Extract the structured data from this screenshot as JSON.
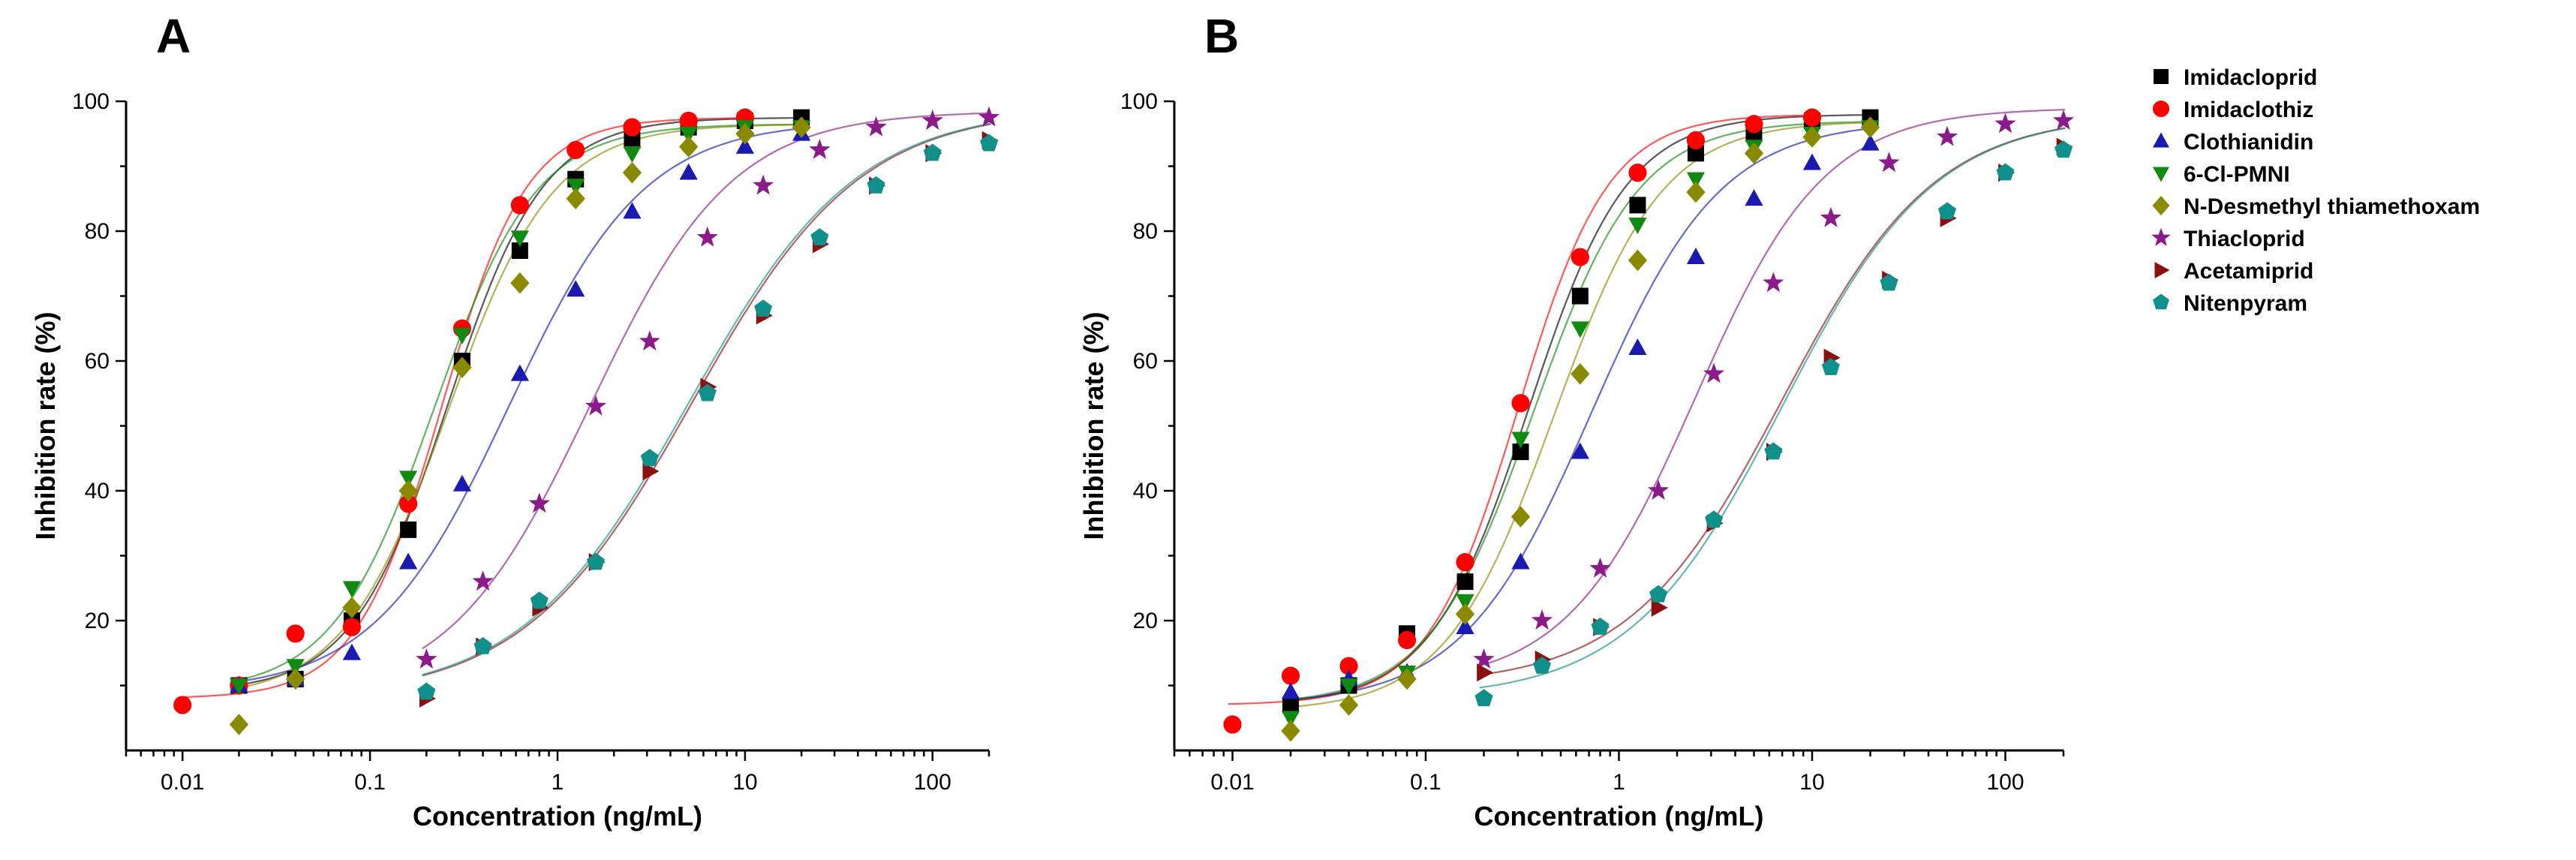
{
  "figure": {
    "legend": [
      {
        "name": "Imidacloprid",
        "color": "#000000",
        "marker": "square"
      },
      {
        "name": "Imidaclothiz",
        "color": "#ff0000",
        "marker": "circle"
      },
      {
        "name": "Clothianidin",
        "color": "#1a1ab0",
        "marker": "triangle-up"
      },
      {
        "name": "6-Cl-PMNI",
        "color": "#108a10",
        "marker": "triangle-down"
      },
      {
        "name": "N-Desmethyl thiamethoxam",
        "color": "#8a8a00",
        "marker": "diamond"
      },
      {
        "name": "Thiacloprid",
        "color": "#8b1a8b",
        "marker": "star"
      },
      {
        "name": "Acetamiprid",
        "color": "#8b1010",
        "marker": "triangle-right"
      },
      {
        "name": "Nitenpyram",
        "color": "#10908a",
        "marker": "pentagon"
      }
    ]
  },
  "chart_data": [
    {
      "panel": "A",
      "type": "scatter",
      "xlabel": "Concentration (ng/mL)",
      "ylabel": "Inhibition rate (%)",
      "xscale": "log",
      "xlim": [
        0.005,
        200
      ],
      "ylim": [
        0,
        100
      ],
      "xticks": [
        "0.01",
        "0.1",
        "1",
        "10",
        "100"
      ],
      "yticks": [
        "20",
        "40",
        "60",
        "80",
        "100"
      ],
      "series": [
        {
          "name": "Imidacloprid",
          "x": [
            0.02,
            0.04,
            0.08,
            0.16,
            0.31,
            0.63,
            1.25,
            2.5,
            5,
            10,
            20
          ],
          "y": [
            10,
            11,
            20,
            34,
            60,
            77,
            88,
            94,
            96,
            97,
            97.5
          ],
          "fit": {
            "bottom": 9,
            "top": 97.5,
            "ec50": 0.26,
            "hill": 1.7
          }
        },
        {
          "name": "Imidaclothiz",
          "x": [
            0.01,
            0.02,
            0.04,
            0.08,
            0.16,
            0.31,
            0.63,
            1.25,
            2.5,
            5,
            10
          ],
          "y": [
            7,
            10,
            18,
            19,
            38,
            65,
            84,
            92.5,
            96,
            97,
            97.5
          ],
          "fit": {
            "bottom": 8,
            "top": 97.5,
            "ec50": 0.24,
            "hill": 1.9
          }
        },
        {
          "name": "Clothianidin",
          "x": [
            0.02,
            0.04,
            0.08,
            0.16,
            0.31,
            0.63,
            1.25,
            2.5,
            5,
            10,
            20
          ],
          "y": [
            10,
            11,
            15,
            29,
            41,
            58,
            71,
            83,
            89,
            93,
            95
          ],
          "fit": {
            "bottom": 9,
            "top": 97,
            "ec50": 0.55,
            "hill": 1.2
          }
        },
        {
          "name": "6-Cl-PMNI",
          "x": [
            0.02,
            0.04,
            0.08,
            0.16,
            0.31,
            0.63,
            1.25,
            2.5,
            5,
            10,
            20
          ],
          "y": [
            10,
            13,
            25,
            42,
            64,
            79,
            87,
            92,
            95,
            96,
            96
          ],
          "fit": {
            "bottom": 9,
            "top": 96.5,
            "ec50": 0.22,
            "hill": 1.6
          }
        },
        {
          "name": "N-Desmethyl thiamethoxam",
          "x": [
            0.02,
            0.04,
            0.08,
            0.16,
            0.31,
            0.63,
            1.25,
            2.5,
            5,
            10,
            20
          ],
          "y": [
            4,
            11,
            22,
            40,
            59,
            72,
            85,
            89,
            93,
            95,
            96
          ],
          "fit": {
            "bottom": 8,
            "top": 96.5,
            "ec50": 0.26,
            "hill": 1.55
          }
        },
        {
          "name": "Thiacloprid",
          "x": [
            0.2,
            0.4,
            0.8,
            1.6,
            3.1,
            6.3,
            12.5,
            25,
            50,
            100,
            200
          ],
          "y": [
            14,
            26,
            38,
            53,
            63,
            79,
            87,
            92.5,
            96,
            97,
            97.5
          ],
          "fit": {
            "bottom": 8,
            "top": 98.5,
            "ec50": 1.5,
            "hill": 1.15
          }
        },
        {
          "name": "Acetamiprid",
          "x": [
            0.2,
            0.4,
            0.8,
            1.6,
            3.1,
            6.3,
            12.5,
            25,
            50,
            100,
            200
          ],
          "y": [
            8,
            16,
            22,
            29,
            43,
            56,
            67,
            78,
            87,
            92,
            94
          ],
          "fit": {
            "bottom": 8,
            "top": 99,
            "ec50": 5.2,
            "hill": 0.97
          }
        },
        {
          "name": "Nitenpyram",
          "x": [
            0.2,
            0.4,
            0.8,
            1.6,
            3.1,
            6.3,
            12.5,
            25,
            50,
            100,
            200
          ],
          "y": [
            9,
            16,
            23,
            29,
            45,
            55,
            68,
            79,
            87,
            92,
            93.5
          ],
          "fit": {
            "bottom": 8,
            "top": 99,
            "ec50": 5.0,
            "hill": 0.97
          }
        }
      ]
    },
    {
      "panel": "B",
      "type": "scatter",
      "xlabel": "Concentration (ng/mL)",
      "ylabel": "Inhibition rate (%)",
      "xscale": "log",
      "xlim": [
        0.005,
        200
      ],
      "ylim": [
        0,
        100
      ],
      "xticks": [
        "0.01",
        "0.1",
        "1",
        "10",
        "100"
      ],
      "yticks": [
        "20",
        "40",
        "60",
        "80",
        "100"
      ],
      "series": [
        {
          "name": "Imidacloprid",
          "x": [
            0.02,
            0.04,
            0.08,
            0.16,
            0.31,
            0.63,
            1.25,
            2.5,
            5,
            10,
            20
          ],
          "y": [
            7,
            10,
            18,
            26,
            46,
            70,
            84,
            92,
            95,
            97,
            97.5
          ],
          "fit": {
            "bottom": 7,
            "top": 98,
            "ec50": 0.34,
            "hill": 1.7
          }
        },
        {
          "name": "Imidaclothiz",
          "x": [
            0.01,
            0.02,
            0.04,
            0.08,
            0.16,
            0.31,
            0.63,
            1.25,
            2.5,
            5,
            10
          ],
          "y": [
            4,
            11.5,
            13,
            17,
            29,
            53.5,
            76,
            89,
            94,
            96.5,
            97.5
          ],
          "fit": {
            "bottom": 7,
            "top": 98,
            "ec50": 0.3,
            "hill": 1.85
          }
        },
        {
          "name": "Clothianidin",
          "x": [
            0.02,
            0.04,
            0.08,
            0.16,
            0.31,
            0.63,
            1.25,
            2.5,
            5,
            10,
            20
          ],
          "y": [
            9,
            11,
            12,
            19,
            29,
            46,
            62,
            76,
            85,
            90.5,
            93.5
          ],
          "fit": {
            "bottom": 7,
            "top": 97,
            "ec50": 0.72,
            "hill": 1.3
          }
        },
        {
          "name": "6-Cl-PMNI",
          "x": [
            0.02,
            0.04,
            0.08,
            0.16,
            0.31,
            0.63,
            1.25,
            2.5,
            5,
            10,
            20
          ],
          "y": [
            5,
            10,
            12,
            23,
            48,
            65,
            81,
            88,
            93,
            95,
            96
          ],
          "fit": {
            "bottom": 7,
            "top": 97,
            "ec50": 0.36,
            "hill": 1.6
          }
        },
        {
          "name": "N-Desmethyl thiamethoxam",
          "x": [
            0.02,
            0.04,
            0.08,
            0.16,
            0.31,
            0.63,
            1.25,
            2.5,
            5,
            10,
            20
          ],
          "y": [
            3,
            7,
            11,
            21,
            36,
            58,
            75.5,
            86,
            92,
            94.5,
            96
          ],
          "fit": {
            "bottom": 6,
            "top": 97,
            "ec50": 0.46,
            "hill": 1.55
          }
        },
        {
          "name": "Thiacloprid",
          "x": [
            0.2,
            0.4,
            0.8,
            1.6,
            3.1,
            6.3,
            12.5,
            25,
            50,
            100,
            200
          ],
          "y": [
            14,
            20,
            28,
            40,
            58,
            72,
            82,
            90.5,
            94.5,
            96.5,
            97
          ],
          "fit": {
            "bottom": 10,
            "top": 99,
            "ec50": 2.5,
            "hill": 1.3
          }
        },
        {
          "name": "Acetamiprid",
          "x": [
            0.2,
            0.4,
            0.8,
            1.6,
            3.1,
            6.3,
            12.5,
            25,
            50,
            100,
            200
          ],
          "y": [
            12,
            14,
            19,
            22,
            35,
            46,
            60.5,
            72.5,
            82,
            89,
            93
          ],
          "fit": {
            "bottom": 10,
            "top": 98,
            "ec50": 7.0,
            "hill": 1.1
          }
        },
        {
          "name": "Nitenpyram",
          "x": [
            0.2,
            0.4,
            0.8,
            1.6,
            3.1,
            6.3,
            12.5,
            25,
            50,
            100,
            200
          ],
          "y": [
            8,
            13,
            19,
            24,
            35.5,
            46,
            59,
            72,
            83,
            89,
            92.5
          ],
          "fit": {
            "bottom": 8,
            "top": 98,
            "ec50": 7.0,
            "hill": 1.1
          }
        }
      ]
    }
  ]
}
